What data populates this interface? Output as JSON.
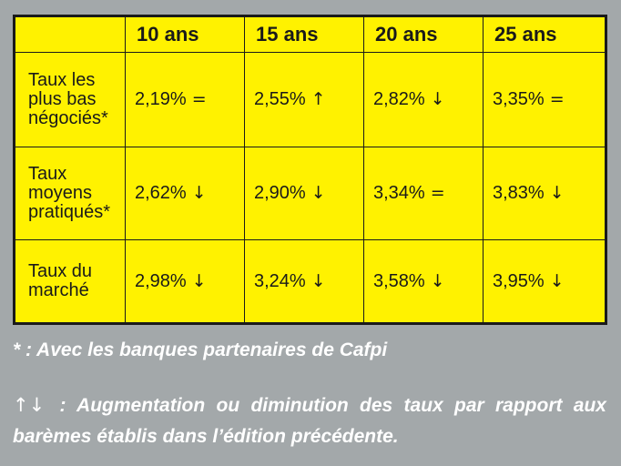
{
  "table": {
    "headers": [
      "",
      "10 ans",
      "15 ans",
      "20 ans",
      "25 ans"
    ],
    "rows": [
      {
        "label": "Taux les plus bas négociés*",
        "cells": [
          {
            "value": "2,19%",
            "trend": "="
          },
          {
            "value": "2,55%",
            "trend": "↑"
          },
          {
            "value": "2,82%",
            "trend": "↓"
          },
          {
            "value": "3,35%",
            "trend": "="
          }
        ]
      },
      {
        "label": "Taux moyens pratiqués*",
        "cells": [
          {
            "value": "2,62%",
            "trend": "↓"
          },
          {
            "value": "2,90%",
            "trend": "↓"
          },
          {
            "value": "3,34%",
            "trend": "="
          },
          {
            "value": "3,83%",
            "trend": "↓"
          }
        ]
      },
      {
        "label": "Taux du marché",
        "cells": [
          {
            "value": "2,98%",
            "trend": "↓"
          },
          {
            "value": "3,24%",
            "trend": "↓"
          },
          {
            "value": "3,58%",
            "trend": "↓"
          },
          {
            "value": "3,95%",
            "trend": "↓"
          }
        ]
      }
    ]
  },
  "footnotes": {
    "partners": "* : Avec les banques partenaires de Cafpi",
    "arrows_symbol": "↑↓",
    "arrows_text": ": Augmentation ou diminution des taux par rapport aux barèmes établis dans l’édition précédente."
  },
  "colors": {
    "background": "#a3a8aa",
    "table_fill": "#fff200",
    "border": "#1a1a1a"
  }
}
